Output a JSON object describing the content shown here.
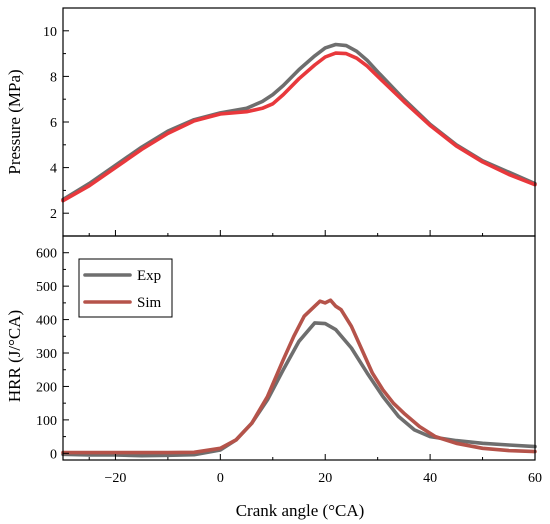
{
  "chart_data": [
    {
      "type": "line",
      "xlim": [
        -30,
        60
      ],
      "ylim": [
        1,
        11
      ],
      "xticks": [
        -20,
        0,
        20,
        40,
        60
      ],
      "yticks": [
        2,
        4,
        6,
        8,
        10
      ],
      "xlabel": "",
      "ylabel": "Pressure (MPa)",
      "grid": false,
      "series": [
        {
          "name": "Exp",
          "color": "#6e6e6e",
          "x": [
            -30,
            -25,
            -20,
            -15,
            -10,
            -5,
            0,
            5,
            8,
            10,
            12,
            15,
            18,
            20,
            22,
            24,
            26,
            28,
            30,
            35,
            40,
            45,
            50,
            55,
            60
          ],
          "y": [
            2.6,
            3.3,
            4.1,
            4.9,
            5.6,
            6.1,
            6.4,
            6.6,
            6.9,
            7.2,
            7.6,
            8.3,
            8.9,
            9.25,
            9.4,
            9.35,
            9.1,
            8.7,
            8.2,
            7.0,
            5.9,
            5.0,
            4.3,
            3.8,
            3.3
          ]
        },
        {
          "name": "Sim",
          "color": "#e8383c",
          "x": [
            -30,
            -25,
            -20,
            -15,
            -10,
            -5,
            0,
            5,
            8,
            10,
            12,
            15,
            18,
            20,
            22,
            24,
            26,
            28,
            30,
            35,
            40,
            45,
            50,
            55,
            60
          ],
          "y": [
            2.55,
            3.2,
            4.0,
            4.8,
            5.5,
            6.05,
            6.35,
            6.45,
            6.6,
            6.8,
            7.2,
            7.9,
            8.5,
            8.85,
            9.02,
            9.0,
            8.8,
            8.45,
            8.0,
            6.9,
            5.85,
            4.95,
            4.25,
            3.7,
            3.25
          ]
        }
      ]
    },
    {
      "type": "line",
      "xlim": [
        -30,
        60
      ],
      "ylim": [
        -20,
        650
      ],
      "xticks": [
        -20,
        0,
        20,
        40,
        60
      ],
      "yticks": [
        0,
        100,
        200,
        300,
        400,
        500,
        600
      ],
      "xlabel": "Crank angle (°CA)",
      "ylabel": "HRR (J/°CA)",
      "grid": false,
      "legend": "top-left",
      "series": [
        {
          "name": "Exp",
          "color": "#6e6e6e",
          "x": [
            -30,
            -25,
            -20,
            -15,
            -10,
            -5,
            0,
            3,
            6,
            9,
            12,
            15,
            18,
            20,
            22,
            25,
            28,
            31,
            34,
            37,
            40,
            45,
            50,
            55,
            60
          ],
          "y": [
            -3,
            -5,
            -5,
            -7,
            -6,
            -4,
            10,
            40,
            90,
            160,
            250,
            335,
            390,
            388,
            370,
            315,
            240,
            170,
            110,
            70,
            50,
            38,
            30,
            25,
            20
          ]
        },
        {
          "name": "Sim",
          "color": "#b5534a",
          "x": [
            -30,
            -25,
            -20,
            -15,
            -10,
            -5,
            0,
            3,
            6,
            9,
            12,
            14,
            16,
            18,
            19,
            20,
            21,
            22,
            23,
            25,
            27,
            29,
            31,
            33,
            35,
            38,
            41,
            45,
            50,
            55,
            60
          ],
          "y": [
            2,
            2,
            2,
            2,
            2,
            3,
            15,
            40,
            90,
            170,
            280,
            350,
            410,
            440,
            455,
            450,
            458,
            440,
            430,
            380,
            310,
            240,
            190,
            150,
            120,
            80,
            50,
            30,
            15,
            8,
            5
          ]
        }
      ]
    }
  ]
}
